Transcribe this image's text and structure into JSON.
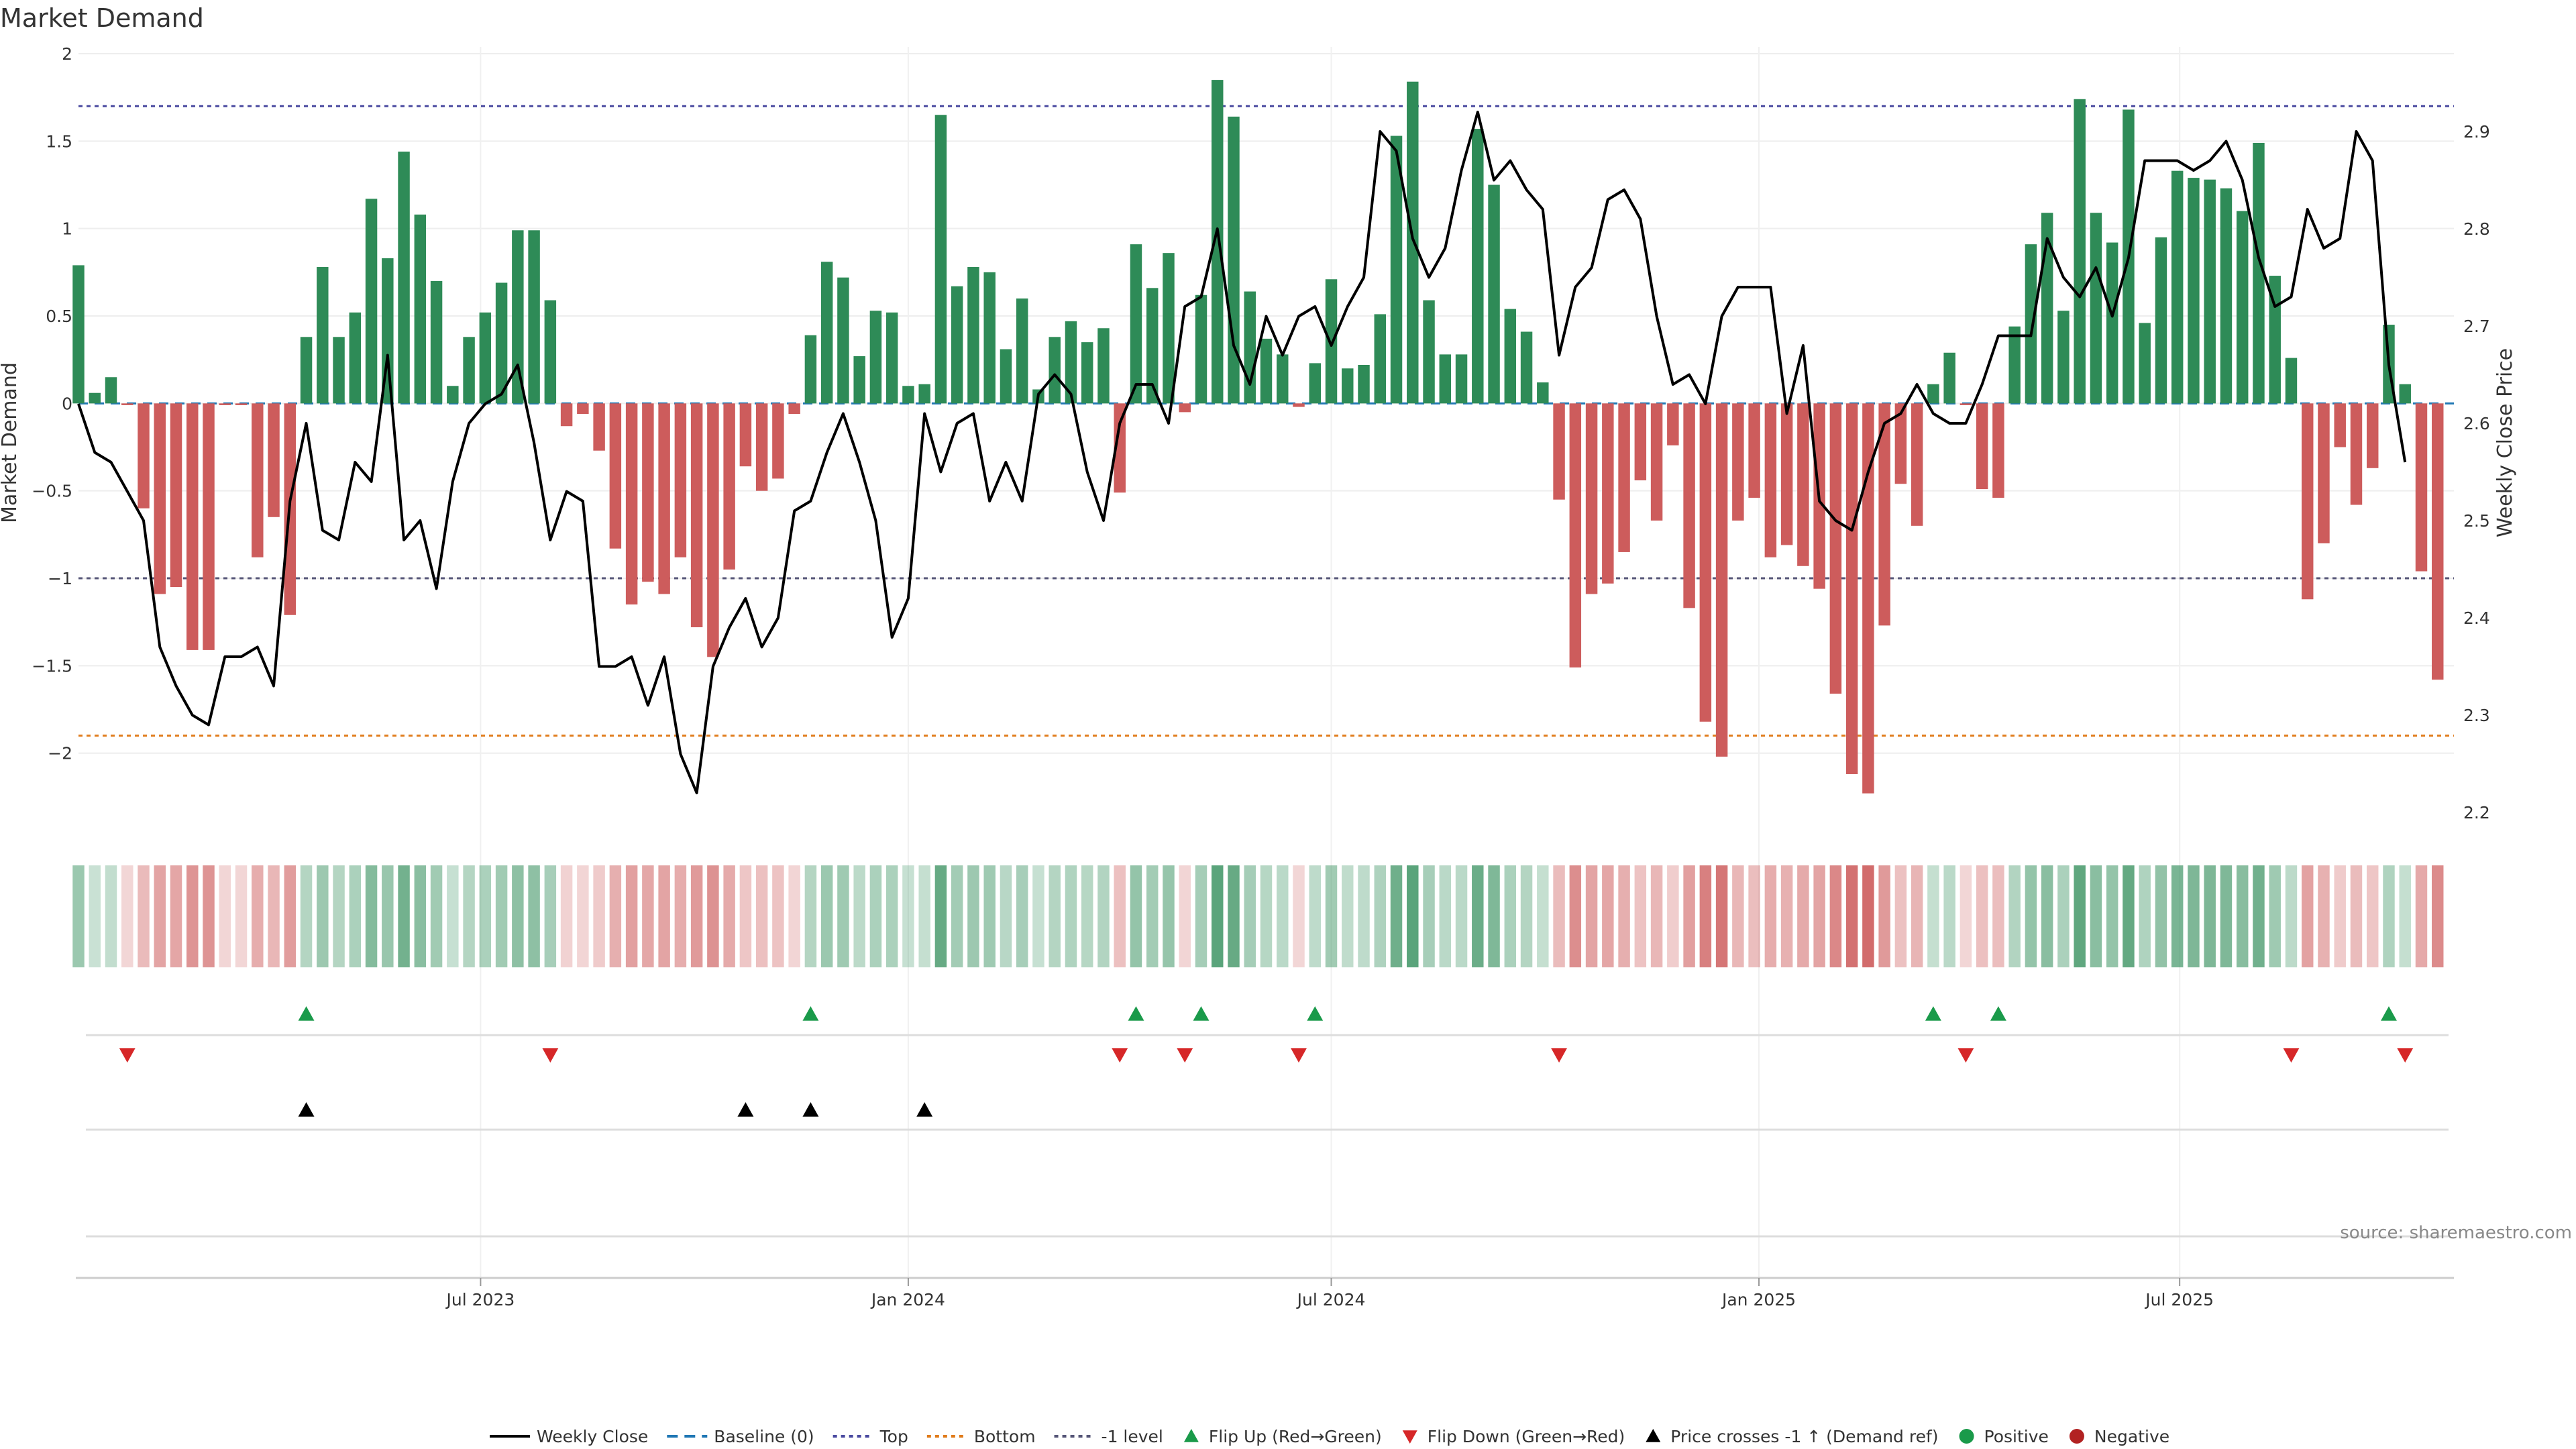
{
  "title": "Market Demand",
  "source": "source: sharemaestro.com",
  "chart_data": {
    "type": "bar",
    "title": "Market Demand",
    "ylabel_left": "Market Demand",
    "ylabel_right": "Weekly Close Price",
    "ylim_left": [
      -2.45,
      2.0
    ],
    "ylim_right": [
      2.18,
      2.98
    ],
    "yticks_left": [
      2,
      1.5,
      1,
      0.5,
      0,
      -0.5,
      -1,
      -1.5,
      -2
    ],
    "ytick_labels_left": [
      "2",
      "1.5",
      "1",
      "0.5",
      "0",
      "−0.5",
      "−1",
      "−1.5",
      "−2"
    ],
    "yticks_right": [
      2.9,
      2.8,
      2.7,
      2.6,
      2.5,
      2.4,
      2.3,
      2.2
    ],
    "ytick_labels_right": [
      "2.9",
      "2.8",
      "2.7",
      "2.6",
      "2.5",
      "2.4",
      "2.3",
      "2.2"
    ],
    "x_range": [
      "2023-01-09",
      "2025-10-27"
    ],
    "x_ticks": [
      {
        "date": "2023-07-01",
        "label": "Jul 2023"
      },
      {
        "date": "2024-01-01",
        "label": "Jan 2024"
      },
      {
        "date": "2024-07-01",
        "label": "Jul 2024"
      },
      {
        "date": "2025-01-01",
        "label": "Jan 2025"
      },
      {
        "date": "2025-07-01",
        "label": "Jul 2025"
      }
    ],
    "levels": {
      "top": 1.7,
      "bottom": -1.9,
      "minus_one": -1.0,
      "baseline": 0
    },
    "start_date": "2023-01-09",
    "demand": [
      0.79,
      0.06,
      0.15,
      -0.01,
      -0.6,
      -1.09,
      -1.05,
      -1.41,
      -1.41,
      -0.01,
      -0.01,
      -0.88,
      -0.65,
      -1.21,
      0.38,
      0.78,
      0.38,
      0.52,
      1.17,
      0.83,
      1.44,
      1.08,
      0.7,
      0.1,
      0.38,
      0.52,
      0.69,
      0.99,
      0.99,
      0.59,
      -0.13,
      -0.06,
      -0.27,
      -0.83,
      -1.15,
      -1.02,
      -1.09,
      -0.88,
      -1.28,
      -1.45,
      -0.95,
      -0.36,
      -0.5,
      -0.43,
      -0.06,
      0.39,
      0.81,
      0.72,
      0.27,
      0.53,
      0.52,
      0.1,
      0.11,
      1.65,
      0.67,
      0.78,
      0.75,
      0.31,
      0.6,
      0.08,
      0.38,
      0.47,
      0.35,
      0.43,
      -0.51,
      0.91,
      0.66,
      0.86,
      -0.05,
      0.62,
      1.85,
      1.64,
      0.64,
      0.37,
      0.28,
      -0.02,
      0.23,
      0.71,
      0.2,
      0.22,
      0.51,
      1.53,
      1.84,
      0.59,
      0.28,
      0.28,
      1.57,
      1.25,
      0.54,
      0.41,
      0.12,
      -0.55,
      -1.51,
      -1.09,
      -1.03,
      -0.85,
      -0.44,
      -0.67,
      -0.24,
      -1.17,
      -1.82,
      -2.02,
      -0.67,
      -0.54,
      -0.88,
      -0.81,
      -0.93,
      -1.06,
      -1.66,
      -2.12,
      -2.23,
      -1.27,
      -0.46,
      -0.7,
      0.11,
      0.29,
      -0.01,
      -0.49,
      -0.54,
      0.44,
      0.91,
      1.09,
      0.53,
      1.74,
      1.09,
      0.92,
      1.68,
      0.46,
      0.95,
      1.33,
      1.29,
      1.28,
      1.23,
      1.1,
      1.49,
      0.73,
      0.26,
      -1.12,
      -0.8,
      -0.25,
      -0.58,
      -0.37,
      0.45,
      0.11,
      -0.96,
      -1.58
    ],
    "weekly_close": [
      2.62,
      2.57,
      2.56,
      2.53,
      2.5,
      2.37,
      2.33,
      2.3,
      2.29,
      2.36,
      2.36,
      2.37,
      2.33,
      2.52,
      2.6,
      2.49,
      2.48,
      2.56,
      2.54,
      2.67,
      2.48,
      2.5,
      2.43,
      2.54,
      2.6,
      2.62,
      2.63,
      2.66,
      2.58,
      2.48,
      2.53,
      2.52,
      2.35,
      2.35,
      2.36,
      2.31,
      2.36,
      2.26,
      2.22,
      2.35,
      2.39,
      2.42,
      2.37,
      2.4,
      2.51,
      2.52,
      2.57,
      2.61,
      2.56,
      2.5,
      2.38,
      2.42,
      2.61,
      2.55,
      2.6,
      2.61,
      2.52,
      2.56,
      2.52,
      2.63,
      2.65,
      2.63,
      2.55,
      2.5,
      2.6,
      2.64,
      2.64,
      2.6,
      2.72,
      2.73,
      2.8,
      2.68,
      2.64,
      2.71,
      2.67,
      2.71,
      2.72,
      2.68,
      2.72,
      2.75,
      2.9,
      2.88,
      2.79,
      2.75,
      2.78,
      2.86,
      2.92,
      2.85,
      2.87,
      2.84,
      2.82,
      2.67,
      2.74,
      2.76,
      2.83,
      2.84,
      2.81,
      2.71,
      2.64,
      2.65,
      2.62,
      2.71,
      2.74,
      2.74,
      2.74,
      2.61,
      2.68,
      2.52,
      2.5,
      2.49,
      2.55,
      2.6,
      2.61,
      2.64,
      2.61,
      2.6,
      2.6,
      2.64,
      2.69,
      2.69,
      2.69,
      2.79,
      2.75,
      2.73,
      2.76,
      2.71,
      2.77,
      2.87,
      2.87,
      2.87,
      2.86,
      2.87,
      2.89,
      2.85,
      2.77,
      2.72,
      2.73,
      2.82,
      2.78,
      2.79,
      2.9,
      2.87,
      2.66,
      2.56
    ],
    "flip_up_weeks": [
      14,
      45,
      65,
      69,
      76,
      114,
      118,
      142
    ],
    "flip_down_weeks": [
      3,
      29,
      64,
      68,
      75,
      91,
      116,
      136,
      143
    ],
    "price_cross_weeks": [
      14,
      41,
      45,
      52
    ],
    "legend": [
      {
        "label": "Weekly Close",
        "kind": "line",
        "color": "#000000"
      },
      {
        "label": "Baseline (0)",
        "kind": "dash",
        "color": "#1f77b4"
      },
      {
        "label": "Top",
        "kind": "dot",
        "color": "#4a4aa0"
      },
      {
        "label": "Bottom",
        "kind": "dot",
        "color": "#e07b1a"
      },
      {
        "label": "-1 level",
        "kind": "dot",
        "color": "#555577"
      },
      {
        "label": "Flip Up (Red→Green)",
        "kind": "tri-up",
        "color": "#1a9a4a"
      },
      {
        "label": "Flip Down (Green→Red)",
        "kind": "tri-down",
        "color": "#d62728"
      },
      {
        "label": "Price crosses -1 ↑ (Demand ref)",
        "kind": "tri-up",
        "color": "#000000"
      },
      {
        "label": "Positive",
        "kind": "dot-circle",
        "color": "#1a9a4a"
      },
      {
        "label": "Negative",
        "kind": "dot-circle",
        "color": "#b22222"
      }
    ],
    "colors": {
      "positive": "#2e8b57",
      "negative": "#cd5c5c",
      "close": "#000000",
      "top": "#4a4aa0",
      "bottom": "#e07b1a",
      "minus_one": "#555577",
      "baseline": "#1f77b4"
    },
    "grid": true
  }
}
